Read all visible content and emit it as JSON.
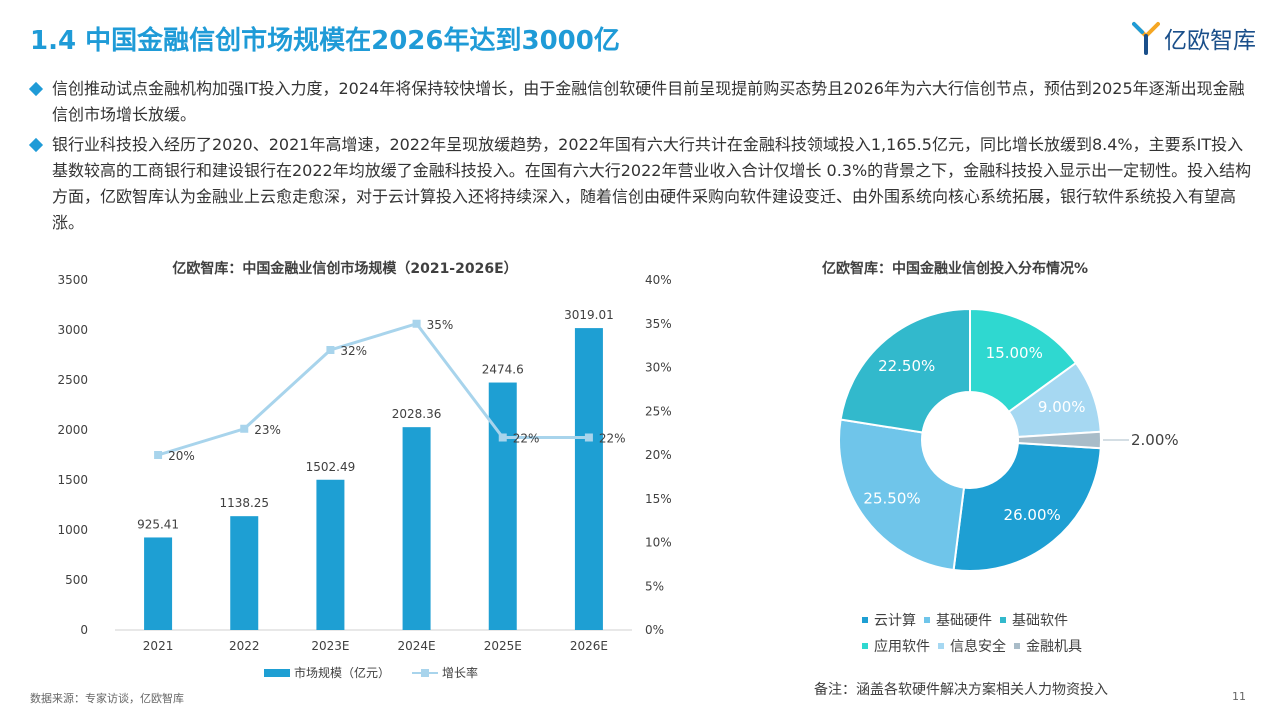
{
  "page": {
    "title": "1.4 中国金融信创市场规模在2026年达到3000亿",
    "logo_text": "亿欧智库",
    "page_number": "11"
  },
  "bullets": [
    "信创推动试点金融机构加强IT投入力度，2024年将保持较快增长，由于金融信创软硬件目前呈现提前购买态势且2026年为六大行信创节点，预估到2025年逐渐出现金融信创市场增长放缓。",
    "银行业科技投入经历了2020、2021年高增速，2022年呈现放缓趋势，2022年国有六大行共计在金融科技领域投入1,165.5亿元，同比增长放缓到8.4%，主要系IT投入基数较高的工商银行和建设银行在2022年均放缓了金融科技投入。在国有六大行2022年营业收入合计仅增长 0.3%的背景之下，金融科技投入显示出一定韧性。投入结构方面，亿欧智库认为金融业上云愈走愈深，对于云计算投入还将持续深入，随着信创由硬件采购向软件建设变迁、由外围系统向核心系统拓展，银行软件系统投入有望高涨。"
  ],
  "footer": {
    "source": "数据来源：专家访谈，亿欧智库",
    "note": "备注：涵盖各软硬件解决方案相关人力物资投入"
  },
  "colors": {
    "accent": "#1f9bd7",
    "bar": "#1e9fd3",
    "line": "#a8d4ec"
  },
  "chart_data": [
    {
      "type": "bar",
      "title": "亿欧智库：中国金融业信创市场规模（2021-2026E）",
      "categories": [
        "2021",
        "2022",
        "2023E",
        "2024E",
        "2025E",
        "2026E"
      ],
      "series": [
        {
          "name": "市场规模（亿元）",
          "type": "bar",
          "axis": "left",
          "values": [
            925.41,
            1138.25,
            1502.49,
            2028.36,
            2474.6,
            3019.01
          ],
          "labels": [
            "925.41",
            "1138.25",
            "1502.49",
            "2028.36",
            "2474.6",
            "3019.01"
          ]
        },
        {
          "name": "增长率",
          "type": "line",
          "axis": "right",
          "values": [
            20,
            23,
            32,
            35,
            22,
            22
          ],
          "labels": [
            "20%",
            "23%",
            "32%",
            "35%",
            "22%",
            "22%"
          ]
        }
      ],
      "y_left": {
        "min": 0,
        "max": 3500,
        "ticks": [
          "0",
          "500",
          "1000",
          "1500",
          "2000",
          "2500",
          "3000",
          "3500"
        ]
      },
      "y_right": {
        "min": 0,
        "max": 40,
        "ticks": [
          "0%",
          "5%",
          "10%",
          "15%",
          "20%",
          "25%",
          "30%",
          "35%",
          "40%"
        ]
      },
      "grid": false,
      "legend": "bottom"
    },
    {
      "type": "pie",
      "donut": true,
      "title": "亿欧智库：中国金融业信创投入分布情况%",
      "slices": [
        {
          "name": "云计算",
          "value": 26.0,
          "label": "26.00%",
          "color": "#1e9fd3"
        },
        {
          "name": "基础硬件",
          "value": 25.5,
          "label": "25.50%",
          "color": "#6fc5ea"
        },
        {
          "name": "基础软件",
          "value": 22.5,
          "label": "22.50%",
          "color": "#32b9cc"
        },
        {
          "name": "应用软件",
          "value": 15.0,
          "label": "15.00%",
          "color": "#2fd8d0"
        },
        {
          "name": "信息安全",
          "value": 9.0,
          "label": "9.00%",
          "color": "#a6d8f2"
        },
        {
          "name": "金融机具",
          "value": 2.0,
          "label": "2.00%",
          "color": "#a9bcc8"
        }
      ],
      "legend": "bottom"
    }
  ]
}
